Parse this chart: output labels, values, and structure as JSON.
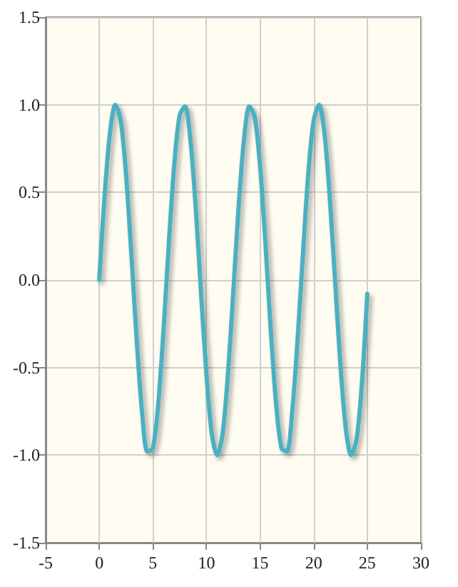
{
  "chart_data": {
    "type": "line",
    "x": [
      0,
      0.5,
      1,
      1.5,
      2,
      2.5,
      3,
      3.5,
      4,
      4.5,
      5,
      5.5,
      6,
      6.5,
      7,
      7.5,
      8,
      8.5,
      9,
      9.5,
      10,
      10.5,
      11,
      11.5,
      12,
      12.5,
      13,
      13.5,
      14,
      14.5,
      15,
      15.5,
      16,
      16.5,
      17,
      17.5,
      18,
      18.5,
      19,
      19.5,
      20,
      20.5,
      21,
      21.5,
      22,
      22.5,
      23,
      23.5,
      24,
      24.5,
      25
    ],
    "series": [
      {
        "color": "#4bb0c0",
        "values": [
          0,
          0.48,
          0.84,
          1.0,
          0.91,
          0.6,
          0.14,
          -0.35,
          -0.76,
          -0.98,
          -0.96,
          -0.71,
          -0.28,
          0.22,
          0.66,
          0.94,
          0.99,
          0.8,
          0.41,
          -0.08,
          -0.54,
          -0.88,
          -1.0,
          -0.88,
          -0.54,
          -0.07,
          0.42,
          0.8,
          0.99,
          0.93,
          0.65,
          0.21,
          -0.29,
          -0.71,
          -0.96,
          -0.98,
          -0.75,
          -0.34,
          0.15,
          0.61,
          0.91,
          1.0,
          0.84,
          0.47,
          -0.01,
          -0.49,
          -0.85,
          -1.0,
          -0.91,
          -0.59,
          -0.08
        ]
      }
    ],
    "xlim": [
      -5,
      30
    ],
    "xticks": [
      -5,
      0,
      5,
      10,
      15,
      20,
      25,
      30
    ],
    "ylim": [
      -1.5,
      1.5
    ],
    "yticks": [
      {
        "value": -1.5,
        "label": "-1.5"
      },
      {
        "value": -1,
        "label": "-1.0"
      },
      {
        "value": -0.5,
        "label": "-0.5"
      },
      {
        "value": 0,
        "label": "0.0"
      },
      {
        "value": 0.5,
        "label": "0.5"
      },
      {
        "value": 1,
        "label": "1.0"
      },
      {
        "value": 1.5,
        "label": "1.5"
      }
    ],
    "grid": true,
    "marker": "none",
    "line_style": "solid"
  }
}
